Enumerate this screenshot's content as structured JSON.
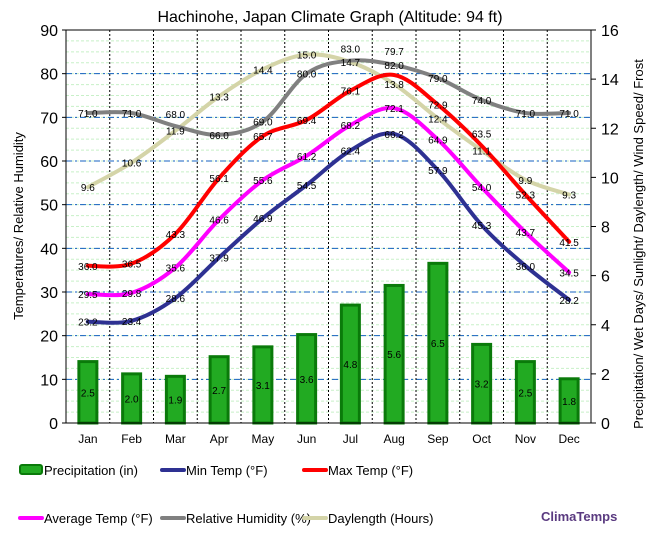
{
  "chart_data": {
    "type": "bar+line",
    "title": "Hachinohe, Japan Climate Graph (Altitude: 94 ft)",
    "ylabel_left": "Temperatures/ Relative Humidity",
    "ylabel_right": "Precipitation/ Wet Days/ Sunlight/ Daylength/ Wind Speed/ Frost",
    "ylim_left": [
      0,
      90
    ],
    "ylim_right": [
      0,
      16
    ],
    "yticks_left": [
      0,
      10,
      20,
      30,
      40,
      50,
      60,
      70,
      80,
      90
    ],
    "yticks_right": [
      0,
      2,
      4,
      6,
      8,
      10,
      12,
      14,
      16
    ],
    "categories": [
      "Jan",
      "Feb",
      "Mar",
      "Apr",
      "May",
      "Jun",
      "Jul",
      "Aug",
      "Sep",
      "Oct",
      "Nov",
      "Dec"
    ],
    "grid": true,
    "legend_placement": "bottom",
    "series": [
      {
        "name": "Precipitation (in)",
        "kind": "bar",
        "axis": "right",
        "color": "#1a9a1a",
        "values": [
          2.5,
          2.0,
          1.9,
          2.7,
          3.1,
          3.6,
          4.8,
          5.6,
          6.5,
          3.2,
          2.5,
          1.8
        ]
      },
      {
        "name": "Min Temp (°F)",
        "kind": "line",
        "axis": "left",
        "color": "#2e3192",
        "values": [
          23.2,
          23.4,
          28.6,
          37.9,
          46.9,
          54.5,
          62.4,
          66.2,
          57.9,
          45.3,
          36.0,
          28.2
        ]
      },
      {
        "name": "Max Temp (°F)",
        "kind": "line",
        "axis": "left",
        "color": "#ff0000",
        "values": [
          36.0,
          36.5,
          43.3,
          56.1,
          65.7,
          69.4,
          76.1,
          79.7,
          72.9,
          63.5,
          52.3,
          41.5
        ]
      },
      {
        "name": "Average Temp (°F)",
        "kind": "line",
        "axis": "left",
        "color": "#ff00ff",
        "values": [
          29.5,
          29.8,
          35.6,
          46.6,
          55.6,
          61.2,
          68.2,
          72.1,
          64.9,
          54.0,
          43.7,
          34.5
        ]
      },
      {
        "name": "Relative Humidity (%)",
        "kind": "line",
        "axis": "left",
        "color": "#808080",
        "values": [
          71.0,
          71.0,
          68.0,
          66.0,
          69.0,
          80.0,
          83.0,
          82.0,
          79.0,
          74.0,
          71.0,
          71.0
        ]
      },
      {
        "name": "Daylength (Hours)",
        "kind": "line",
        "axis": "right",
        "color": "#d4d4a8",
        "values": [
          9.6,
          10.6,
          11.9,
          13.3,
          14.4,
          15.0,
          14.7,
          13.8,
          12.4,
          11.1,
          9.9,
          9.3
        ]
      }
    ]
  },
  "brand": "ClimaTemps"
}
